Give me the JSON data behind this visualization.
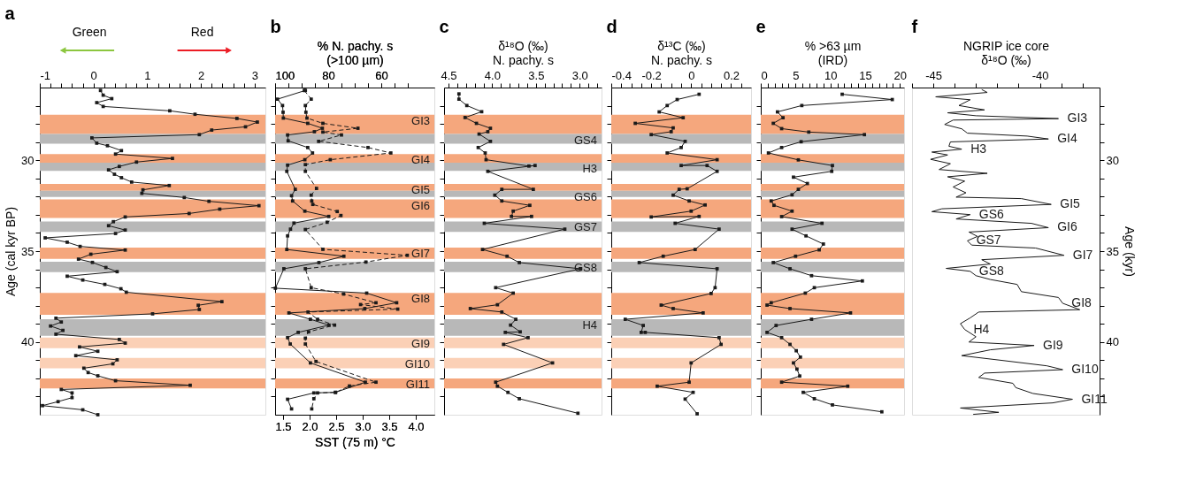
{
  "chart_data": [
    {
      "type": "line",
      "title": "a",
      "ylabel": "Age (cal kyr BP)",
      "orientation": "horizontal",
      "marker": "square",
      "line_style": "solid",
      "xlim": [
        -1,
        3.2
      ],
      "xticks": [
        -1,
        {
          "value": -0.8,
          "label": null
        },
        {
          "value": -0.6,
          "label": null
        },
        {
          "value": -0.4,
          "label": null
        },
        {
          "value": -0.2,
          "label": null
        },
        0,
        {
          "value": 0.2,
          "label": null
        },
        {
          "value": 0.4,
          "label": null
        },
        {
          "value": 0.6,
          "label": null
        },
        {
          "value": 0.8,
          "label": null
        },
        1,
        {
          "value": 1.2,
          "label": null
        },
        {
          "value": 1.4,
          "label": null
        },
        {
          "value": 1.6,
          "label": null
        },
        {
          "value": 1.8,
          "label": null
        },
        2,
        {
          "value": 2.2,
          "label": null
        },
        {
          "value": 2.4,
          "label": null
        },
        {
          "value": 2.6,
          "label": null
        },
        {
          "value": 2.8,
          "label": null
        },
        3
      ],
      "ylim": [
        44,
        26
      ],
      "yticks": [
        {
          "value": 27,
          "label": null
        },
        {
          "value": 28,
          "label": null
        },
        {
          "value": 29,
          "label": null
        },
        30,
        {
          "value": 31,
          "label": null
        },
        {
          "value": 32,
          "label": null
        },
        {
          "value": 33,
          "label": null
        },
        {
          "value": 34,
          "label": null
        },
        35,
        {
          "value": 36,
          "label": null
        },
        {
          "value": 37,
          "label": null
        },
        {
          "value": 38,
          "label": null
        },
        {
          "value": 39,
          "label": null
        },
        40,
        {
          "value": 41,
          "label": null
        },
        {
          "value": 42,
          "label": null
        },
        {
          "value": 43,
          "label": null
        }
      ],
      "x": [
        26.16,
        26.42,
        26.61,
        26.83,
        27.04,
        27.28,
        27.47,
        27.7,
        27.9,
        28.16,
        28.34,
        28.59,
        28.77,
        29.06,
        29.2,
        29.47,
        29.66,
        29.9,
        30.1,
        30.34,
        30.53,
        30.77,
        30.96,
        31.2,
        31.39,
        31.63,
        31.82,
        32.05,
        32.26,
        32.5,
        32.69,
        32.93,
        33.12,
        33.38,
        33.6,
        33.84,
        34.03,
        34.27,
        34.51,
        34.74,
        34.94,
        35.17,
        35.44,
        35.62,
        35.9,
        36.13,
        36.38,
        36.59,
        36.83,
        37.07,
        37.26,
        37.78,
        37.98,
        38.21,
        38.45,
        38.69,
        38.9,
        39.12,
        39.36,
        39.57,
        39.86,
        40.06,
        40.27,
        40.51,
        40.75,
        40.98,
        41.2,
        41.44,
        41.68,
        41.86,
        42.13,
        42.38,
        42.61,
        42.8,
        43.06,
        43.28,
        43.5,
        43.73,
        44.0
      ],
      "series": [
        {
          "color": "#1a1a1a",
          "values": [
            0.13,
            0.18,
            0.34,
            0.06,
            0.18,
            1.42,
            1.89,
            2.67,
            3.05,
            2.83,
            2.2,
            1.97,
            -0.03,
            0.06,
            0.26,
            0.52,
            0.41,
            1.47,
            0.8,
            0.48,
            0.28,
            0.39,
            0.52,
            0.71,
            1.41,
            0.92,
            0.9,
            1.69,
            2.15,
            3.08,
            2.35,
            1.78,
            0.59,
            0.37,
            0.28,
            0.59,
            0.41,
            -0.9,
            -0.49,
            -0.25,
            0.59,
            -0.05,
            -0.28,
            -0.02,
            0.23,
            0.44,
            -0.49,
            -0.2,
            0.21,
            0.51,
            0.61,
            2.39,
            1.95,
            1.97,
            1.1,
            -0.7,
            -0.6,
            -0.8,
            -0.57,
            -0.7,
            0.48,
            0.59,
            -0.26,
            0.08,
            -0.33,
            0.44,
            0.36,
            -0.18,
            -0.1,
            0.08,
            0.41,
            1.8,
            -0.6,
            -0.4,
            -0.4,
            -0.66,
            -0.95,
            -0.2,
            0.08
          ]
        }
      ],
      "bands": [
        {
          "axis": "y",
          "from": 27.5,
          "to": 28.56,
          "color": "#f5a77d"
        },
        {
          "axis": "y",
          "from": 28.56,
          "to": 29.09,
          "color": "#b8b8b8"
        },
        {
          "axis": "y",
          "from": 29.66,
          "to": 30.14,
          "color": "#f5a77d"
        },
        {
          "axis": "y",
          "from": 30.14,
          "to": 30.58,
          "color": "#b8b8b8"
        },
        {
          "axis": "y",
          "from": 31.3,
          "to": 31.68,
          "color": "#f5a77d"
        },
        {
          "axis": "y",
          "from": 31.68,
          "to": 32.02,
          "color": "#b8b8b8"
        },
        {
          "axis": "y",
          "from": 32.16,
          "to": 33.17,
          "color": "#f5a77d"
        },
        {
          "axis": "y",
          "from": 33.37,
          "to": 33.94,
          "color": "#b8b8b8"
        },
        {
          "axis": "y",
          "from": 34.8,
          "to": 35.43,
          "color": "#f5a77d"
        },
        {
          "axis": "y",
          "from": 35.58,
          "to": 36.15,
          "color": "#b8b8b8"
        },
        {
          "axis": "y",
          "from": 37.3,
          "to": 38.5,
          "color": "#f5a77d"
        },
        {
          "axis": "y",
          "from": 38.75,
          "to": 39.66,
          "color": "#b8b8b8"
        },
        {
          "axis": "y",
          "from": 39.76,
          "to": 40.34,
          "color": "#fbd0b6"
        },
        {
          "axis": "y",
          "from": 40.87,
          "to": 41.44,
          "color": "#fbd0b6"
        },
        {
          "axis": "y",
          "from": 42.0,
          "to": 42.55,
          "color": "#f5a77d"
        }
      ],
      "annotations": [
        "Green",
        "Red"
      ]
    },
    {
      "type": "line",
      "title": "b",
      "xlabel": "SST (75 m) °C",
      "x2label": "% N. pachy. s\n(>100 µm)",
      "orientation": "horizontal",
      "marker": "square",
      "tick_labels": "x",
      "xlim": [
        1.35,
        4.35
      ],
      "xticks": [
        1.5,
        {
          "value": 2,
          "label": "2.0"
        },
        2.5,
        {
          "value": 3,
          "label": "3.0"
        },
        3.5,
        {
          "value": 4,
          "label": "4.0"
        }
      ],
      "x2lim": [
        100,
        40
      ],
      "x2ticks": [
        100,
        {
          "value": 95,
          "label": null
        },
        {
          "value": 90,
          "label": null
        },
        {
          "value": 85,
          "label": null
        },
        80,
        {
          "value": 75,
          "label": null
        },
        {
          "value": 70,
          "label": null
        },
        {
          "value": 65,
          "label": null
        },
        60,
        {
          "value": 55,
          "label": null
        },
        {
          "value": 50,
          "label": null
        }
      ],
      "ylim": [
        44,
        26
      ],
      "yticks": [
        {
          "value": 27,
          "label": null
        },
        {
          "value": 28,
          "label": null
        },
        {
          "value": 29,
          "label": null
        },
        30,
        {
          "value": 31,
          "label": null
        },
        {
          "value": 32,
          "label": null
        },
        {
          "value": 33,
          "label": null
        },
        {
          "value": 34,
          "label": null
        },
        35,
        {
          "value": 36,
          "label": null
        },
        {
          "value": 37,
          "label": null
        },
        {
          "value": 38,
          "label": null
        },
        {
          "value": 39,
          "label": null
        },
        40,
        {
          "value": 41,
          "label": null
        },
        {
          "value": 42,
          "label": null
        },
        {
          "value": 43,
          "label": null
        }
      ],
      "series": [
        {
          "axis": "x2",
          "color": "#1a1a1a",
          "line_style": "solid",
          "x": [
            26.16,
            26.64,
            26.99,
            27.36,
            27.68,
            27.97,
            28.24,
            28.43,
            28.61,
            28.93,
            29.3,
            29.6,
            29.97,
            30.27,
            30.61,
            31.6,
            31.95,
            32.24,
            32.8,
            33.09,
            33.46,
            33.79,
            34.16,
            34.91,
            35.28,
            35.63,
            35.97,
            37.04,
            37.31,
            37.84,
            38.16,
            38.4,
            38.75,
            39.07,
            39.47,
            39.76,
            40.11,
            41.15,
            42.21,
            42.77,
            42.8,
            43.15,
            43.68
          ],
          "values": [
            88.6,
            99.1,
            97.2,
            97.0,
            96.9,
            87.7,
            82.2,
            85.2,
            95.3,
            95.1,
            87.7,
            85.9,
            88.8,
            95.3,
            95.6,
            92.4,
            93.8,
            93.4,
            88.8,
            79.8,
            92.9,
            94.2,
            95.3,
            95.6,
            74.1,
            83.5,
            96.7,
            99.9,
            65.5,
            54.2,
            66.2,
            94.8,
            86.7,
            79.7,
            91.3,
            95.3,
            94.3,
            86.7,
            66.0,
            77.3,
            85.4,
            95.3,
            93.8
          ]
        },
        {
          "color": "#1a1a1a",
          "line_style": "dashed",
          "x": [
            26.16,
            26.64,
            26.99,
            27.36,
            27.68,
            27.97,
            28.24,
            28.45,
            28.61,
            28.96,
            29.3,
            29.6,
            29.97,
            30.24,
            30.61,
            31.55,
            31.92,
            32.24,
            32.43,
            32.82,
            33.04,
            33.41,
            33.81,
            34.9,
            35.23,
            35.6,
            35.97,
            37.01,
            37.36,
            37.84,
            37.94,
            38.19,
            38.35,
            38.75,
            39.07,
            39.44,
            39.79,
            40.11,
            41.07,
            42.21,
            42.42,
            42.77,
            42.8,
            43.12,
            43.68
          ],
          "values": [
            1.9,
            2.03,
            1.92,
            1.93,
            1.95,
            2.25,
            2.91,
            2.25,
            2.6,
            2.17,
            3.1,
            3.53,
            2.39,
            1.92,
            1.92,
            2.13,
            2.03,
            2.04,
            2.06,
            2.52,
            2.59,
            2.33,
            1.92,
            2.25,
            3.84,
            3.06,
            1.92,
            2.03,
            2.64,
            3.25,
            2.96,
            3.66,
            1.97,
            2.15,
            2.47,
            1.98,
            1.92,
            1.92,
            2.12,
            3.25,
            2.75,
            2.49,
            2.15,
            2.08,
            2.04
          ]
        }
      ],
      "bands": [
        {
          "axis": "y",
          "from": 27.5,
          "to": 28.56,
          "color": "#f5a77d",
          "label": "GI3"
        },
        {
          "axis": "y",
          "from": 28.56,
          "to": 29.09,
          "color": "#b8b8b8"
        },
        {
          "axis": "y",
          "from": 29.66,
          "to": 30.14,
          "color": "#f5a77d",
          "label": "GI4"
        },
        {
          "axis": "y",
          "from": 30.14,
          "to": 30.58,
          "color": "#b8b8b8"
        },
        {
          "axis": "y",
          "from": 31.3,
          "to": 31.68,
          "color": "#f5a77d",
          "label": "GI5"
        },
        {
          "axis": "y",
          "from": 31.68,
          "to": 32.02,
          "color": "#b8b8b8"
        },
        {
          "axis": "y",
          "from": 32.16,
          "to": 33.17,
          "color": "#f5a77d",
          "label": "GI6"
        },
        {
          "axis": "y",
          "from": 33.37,
          "to": 33.94,
          "color": "#b8b8b8"
        },
        {
          "axis": "y",
          "from": 34.8,
          "to": 35.43,
          "color": "#f5a77d",
          "label": "GI7"
        },
        {
          "axis": "y",
          "from": 35.58,
          "to": 36.15,
          "color": "#b8b8b8"
        },
        {
          "axis": "y",
          "from": 37.3,
          "to": 38.5,
          "color": "#f5a77d",
          "label": "GI8"
        },
        {
          "axis": "y",
          "from": 38.75,
          "to": 39.66,
          "color": "#b8b8b8"
        },
        {
          "axis": "y",
          "from": 39.76,
          "to": 40.34,
          "color": "#fbd0b6",
          "label": "GI9"
        },
        {
          "axis": "y",
          "from": 40.87,
          "to": 41.44,
          "color": "#fbd0b6",
          "label": "GI10"
        },
        {
          "axis": "y",
          "from": 42.0,
          "to": 42.55,
          "color": "#f5a77d",
          "label": "GI11"
        }
      ]
    },
    {
      "type": "line",
      "title": "c",
      "xlabel": "δ¹⁸O (‰)\nN. pachy. s",
      "orientation": "horizontal",
      "marker": "square",
      "tick_labels": "x",
      "line_style": "solid",
      "xlim": [
        4.55,
        2.75
      ],
      "xticks": [
        4.5,
        {
          "value": 4.4,
          "label": null
        },
        {
          "value": 4.3,
          "label": null
        },
        {
          "value": 4.2,
          "label": null
        },
        {
          "value": 4.1,
          "label": null
        },
        {
          "value": 4,
          "label": "4.0"
        },
        {
          "value": 3.9,
          "label": null
        },
        {
          "value": 3.8,
          "label": null
        },
        {
          "value": 3.7,
          "label": null
        },
        {
          "value": 3.6,
          "label": null
        },
        3.5,
        {
          "value": 3.4,
          "label": null
        },
        {
          "value": 3.3,
          "label": null
        },
        {
          "value": 3.2,
          "label": null
        },
        {
          "value": 3.1,
          "label": null
        },
        {
          "value": 3,
          "label": "3.0"
        },
        {
          "value": 2.9,
          "label": null
        },
        {
          "value": 2.8,
          "label": null
        }
      ],
      "ylim": [
        44,
        26
      ],
      "yticks": [
        {
          "value": 27,
          "label": null
        },
        {
          "value": 28,
          "label": null
        },
        {
          "value": 29,
          "label": null
        },
        30,
        {
          "value": 31,
          "label": null
        },
        {
          "value": 32,
          "label": null
        },
        {
          "value": 33,
          "label": null
        },
        {
          "value": 34,
          "label": null
        },
        35,
        {
          "value": 36,
          "label": null
        },
        {
          "value": 37,
          "label": null
        },
        {
          "value": 38,
          "label": null
        },
        {
          "value": 39,
          "label": null
        },
        40,
        {
          "value": 41,
          "label": null
        },
        {
          "value": 42,
          "label": null
        },
        {
          "value": 43,
          "label": null
        }
      ],
      "x": [
        26.35,
        26.64,
        26.99,
        27.33,
        27.65,
        27.97,
        28.24,
        28.43,
        28.56,
        28.96,
        29.3,
        29.6,
        29.97,
        30.32,
        30.29,
        30.61,
        31.6,
        31.6,
        31.92,
        32.24,
        32.48,
        32.8,
        33.09,
        33.09,
        33.47,
        33.79,
        34.91,
        35.28,
        35.63,
        35.97,
        37.01,
        37.31,
        37.95,
        38.16,
        38.35,
        38.75,
        39.07,
        39.44,
        39.47,
        39.76,
        40.13,
        41.15,
        42.21,
        42.43,
        42.77,
        43.12,
        43.92
      ],
      "series": [
        {
          "color": "#1a1a1a",
          "values": [
            4.38,
            4.38,
            4.29,
            4.12,
            4.31,
            4.18,
            4.02,
            4.05,
            4.15,
            4.02,
            4.16,
            4.08,
            4.07,
            3.58,
            3.51,
            4.05,
            3.53,
            3.89,
            3.97,
            3.89,
            3.57,
            3.76,
            3.78,
            3.55,
            4.09,
            3.17,
            4.11,
            3.83,
            3.69,
            2.99,
            3.96,
            3.76,
            3.94,
            4.25,
            3.89,
            3.73,
            3.79,
            3.68,
            3.85,
            3.59,
            3.87,
            3.31,
            3.96,
            3.94,
            3.82,
            3.69,
            3.02
          ]
        }
      ],
      "bands": [
        {
          "axis": "y",
          "from": 27.5,
          "to": 28.56,
          "color": "#f5a77d"
        },
        {
          "axis": "y",
          "from": 28.56,
          "to": 29.09,
          "color": "#b8b8b8",
          "label": "GS4"
        },
        {
          "axis": "y",
          "from": 29.66,
          "to": 30.14,
          "color": "#f5a77d"
        },
        {
          "axis": "y",
          "from": 30.14,
          "to": 30.58,
          "color": "#b8b8b8",
          "label": "H3"
        },
        {
          "axis": "y",
          "from": 31.3,
          "to": 31.68,
          "color": "#f5a77d"
        },
        {
          "axis": "y",
          "from": 31.68,
          "to": 32.02,
          "color": "#b8b8b8",
          "label": "GS6"
        },
        {
          "axis": "y",
          "from": 32.16,
          "to": 33.17,
          "color": "#f5a77d"
        },
        {
          "axis": "y",
          "from": 33.37,
          "to": 33.94,
          "color": "#b8b8b8",
          "label": "GS7"
        },
        {
          "axis": "y",
          "from": 34.8,
          "to": 35.43,
          "color": "#f5a77d"
        },
        {
          "axis": "y",
          "from": 35.58,
          "to": 36.15,
          "color": "#b8b8b8",
          "label": "GS8"
        },
        {
          "axis": "y",
          "from": 37.3,
          "to": 38.5,
          "color": "#f5a77d"
        },
        {
          "axis": "y",
          "from": 38.75,
          "to": 39.66,
          "color": "#b8b8b8",
          "label": "H4"
        },
        {
          "axis": "y",
          "from": 39.76,
          "to": 40.34,
          "color": "#fbd0b6"
        },
        {
          "axis": "y",
          "from": 40.87,
          "to": 41.44,
          "color": "#fbd0b6"
        },
        {
          "axis": "y",
          "from": 42.0,
          "to": 42.55,
          "color": "#f5a77d"
        }
      ]
    },
    {
      "type": "line",
      "title": "d",
      "xlabel": "δ¹³C (‰)\nN. pachy. s",
      "orientation": "horizontal",
      "marker": "square",
      "tick_labels": "x",
      "line_style": "solid",
      "xlim": [
        -0.4,
        0.3
      ],
      "xticks": [
        -0.4,
        {
          "value": -0.35,
          "label": null
        },
        {
          "value": -0.3,
          "label": null
        },
        {
          "value": -0.25,
          "label": null
        },
        -0.2,
        {
          "value": -0.15,
          "label": null
        },
        {
          "value": -0.1,
          "label": null
        },
        {
          "value": -0.05,
          "label": null
        },
        0,
        {
          "value": 0.05,
          "label": null
        },
        {
          "value": 0.1,
          "label": null
        },
        {
          "value": 0.15,
          "label": null
        },
        0.2,
        {
          "value": 0.25,
          "label": null
        }
      ],
      "ylim": [
        44,
        26
      ],
      "yticks": [
        {
          "value": 27,
          "label": null
        },
        {
          "value": 28,
          "label": null
        },
        {
          "value": 29,
          "label": null
        },
        30,
        {
          "value": 31,
          "label": null
        },
        {
          "value": 32,
          "label": null
        },
        {
          "value": 33,
          "label": null
        },
        {
          "value": 34,
          "label": null
        },
        35,
        {
          "value": 36,
          "label": null
        },
        {
          "value": 37,
          "label": null
        },
        {
          "value": 38,
          "label": null
        },
        {
          "value": 39,
          "label": null
        },
        40,
        {
          "value": 41,
          "label": null
        },
        {
          "value": 42,
          "label": null
        },
        {
          "value": 43,
          "label": null
        }
      ],
      "x": [
        26.37,
        26.66,
        26.99,
        27.34,
        27.66,
        27.97,
        28.22,
        28.43,
        28.59,
        28.96,
        29.3,
        29.6,
        29.97,
        30.29,
        30.29,
        30.61,
        31.57,
        31.6,
        31.92,
        32.24,
        32.46,
        32.8,
        33.12,
        33.09,
        33.47,
        33.79,
        34.91,
        35.28,
        35.63,
        35.97,
        37.01,
        37.33,
        37.97,
        38.16,
        38.4,
        38.75,
        39.09,
        39.47,
        39.47,
        39.76,
        40.13,
        41.15,
        42.21,
        42.43,
        42.77,
        43.14,
        43.95
      ],
      "series": [
        {
          "color": "#1a1a1a",
          "values": [
            0.04,
            -0.07,
            -0.12,
            -0.16,
            -0.04,
            -0.28,
            -0.09,
            -0.1,
            -0.2,
            -0.03,
            -0.05,
            -0.12,
            0.13,
            -0.05,
            0.08,
            0.13,
            -0.02,
            -0.06,
            -0.09,
            -0.01,
            0.07,
            0.0,
            -0.2,
            0.04,
            -0.08,
            0.14,
            0.02,
            -0.14,
            -0.26,
            0.13,
            0.12,
            0.1,
            -0.15,
            -0.09,
            0.06,
            -0.33,
            -0.24,
            -0.25,
            -0.23,
            0.14,
            0.15,
            0.0,
            -0.01,
            -0.17,
            0.01,
            -0.03,
            0.03
          ]
        }
      ],
      "bands": [
        {
          "axis": "y",
          "from": 27.5,
          "to": 28.56,
          "color": "#f5a77d"
        },
        {
          "axis": "y",
          "from": 28.56,
          "to": 29.09,
          "color": "#b8b8b8"
        },
        {
          "axis": "y",
          "from": 29.66,
          "to": 30.14,
          "color": "#f5a77d"
        },
        {
          "axis": "y",
          "from": 30.14,
          "to": 30.58,
          "color": "#b8b8b8"
        },
        {
          "axis": "y",
          "from": 31.3,
          "to": 31.68,
          "color": "#f5a77d"
        },
        {
          "axis": "y",
          "from": 31.68,
          "to": 32.02,
          "color": "#b8b8b8"
        },
        {
          "axis": "y",
          "from": 32.16,
          "to": 33.17,
          "color": "#f5a77d"
        },
        {
          "axis": "y",
          "from": 33.37,
          "to": 33.94,
          "color": "#b8b8b8"
        },
        {
          "axis": "y",
          "from": 34.8,
          "to": 35.43,
          "color": "#f5a77d"
        },
        {
          "axis": "y",
          "from": 35.58,
          "to": 36.15,
          "color": "#b8b8b8"
        },
        {
          "axis": "y",
          "from": 37.3,
          "to": 38.5,
          "color": "#f5a77d"
        },
        {
          "axis": "y",
          "from": 38.75,
          "to": 39.66,
          "color": "#b8b8b8"
        },
        {
          "axis": "y",
          "from": 39.76,
          "to": 40.34,
          "color": "#fbd0b6"
        },
        {
          "axis": "y",
          "from": 40.87,
          "to": 41.44,
          "color": "#fbd0b6"
        },
        {
          "axis": "y",
          "from": 42.0,
          "to": 42.55,
          "color": "#f5a77d"
        }
      ]
    },
    {
      "type": "line",
      "title": "e",
      "xlabel": "% >63 µm\n(IRD)",
      "orientation": "horizontal",
      "marker": "square",
      "tick_labels": "x",
      "line_style": "solid",
      "xlim": [
        0,
        20.6
      ],
      "xticks": [
        0,
        {
          "value": 1,
          "label": null
        },
        {
          "value": 2,
          "label": null
        },
        {
          "value": 3,
          "label": null
        },
        {
          "value": 4,
          "label": null
        },
        5,
        {
          "value": 6,
          "label": null
        },
        {
          "value": 7,
          "label": null
        },
        {
          "value": 8,
          "label": null
        },
        {
          "value": 9,
          "label": null
        },
        10,
        {
          "value": 11,
          "label": null
        },
        {
          "value": 12,
          "label": null
        },
        {
          "value": 13,
          "label": null
        },
        {
          "value": 14,
          "label": null
        },
        15,
        {
          "value": 16,
          "label": null
        },
        {
          "value": 17,
          "label": null
        },
        {
          "value": 18,
          "label": null
        },
        {
          "value": 19,
          "label": null
        },
        20
      ],
      "ylim": [
        44,
        26
      ],
      "yticks": [
        {
          "value": 27,
          "label": null
        },
        {
          "value": 28,
          "label": null
        },
        {
          "value": 29,
          "label": null
        },
        30,
        {
          "value": 31,
          "label": null
        },
        {
          "value": 32,
          "label": null
        },
        {
          "value": 33,
          "label": null
        },
        {
          "value": 34,
          "label": null
        },
        35,
        {
          "value": 36,
          "label": null
        },
        {
          "value": 37,
          "label": null
        },
        {
          "value": 38,
          "label": null
        },
        {
          "value": 39,
          "label": null
        },
        40,
        {
          "value": 41,
          "label": null
        },
        {
          "value": 42,
          "label": null
        },
        {
          "value": 43,
          "label": null
        }
      ],
      "x": [
        26.37,
        26.66,
        26.99,
        27.34,
        27.66,
        27.97,
        28.26,
        28.45,
        28.59,
        28.98,
        29.3,
        29.6,
        29.98,
        30.29,
        30.61,
        30.93,
        31.28,
        31.6,
        31.9,
        32.24,
        32.48,
        32.8,
        33.1,
        33.47,
        33.79,
        34.16,
        34.61,
        34.93,
        35.28,
        35.63,
        35.97,
        36.35,
        36.64,
        37.01,
        37.31,
        37.84,
        37.97,
        38.16,
        38.4,
        38.75,
        39.09,
        39.47,
        39.76,
        40.13,
        40.48,
        40.83,
        41.15,
        41.49,
        41.87,
        42.21,
        42.43,
        42.77,
        43.12,
        43.46,
        43.84
      ],
      "series": [
        {
          "color": "#1a1a1a",
          "values": [
            11.7,
            18.9,
            5.9,
            2.4,
            3.2,
            1.8,
            3.0,
            6.9,
            14.9,
            5.8,
            3.0,
            1.1,
            5.4,
            10.3,
            10.2,
            4.7,
            6.7,
            5.4,
            4.5,
            1.5,
            1.9,
            4.5,
            3.0,
            8.8,
            4.5,
            6.5,
            9.0,
            8.4,
            5.0,
            1.8,
            4.2,
            7.3,
            14.6,
            7.7,
            6.4,
            1.5,
            0.9,
            4.2,
            12.9,
            7.3,
            2.2,
            0.9,
            3.0,
            4.2,
            5.1,
            5.7,
            4.7,
            5.2,
            5.6,
            3.0,
            12.5,
            6.1,
            7.7,
            10.3,
            17.4
          ]
        }
      ],
      "bands": [
        {
          "axis": "y",
          "from": 27.5,
          "to": 28.56,
          "color": "#f5a77d"
        },
        {
          "axis": "y",
          "from": 28.56,
          "to": 29.09,
          "color": "#b8b8b8"
        },
        {
          "axis": "y",
          "from": 29.66,
          "to": 30.14,
          "color": "#f5a77d"
        },
        {
          "axis": "y",
          "from": 30.14,
          "to": 30.58,
          "color": "#b8b8b8"
        },
        {
          "axis": "y",
          "from": 31.3,
          "to": 31.68,
          "color": "#f5a77d"
        },
        {
          "axis": "y",
          "from": 31.68,
          "to": 32.02,
          "color": "#b8b8b8"
        },
        {
          "axis": "y",
          "from": 32.16,
          "to": 33.17,
          "color": "#f5a77d"
        },
        {
          "axis": "y",
          "from": 33.37,
          "to": 33.94,
          "color": "#b8b8b8"
        },
        {
          "axis": "y",
          "from": 34.8,
          "to": 35.43,
          "color": "#f5a77d"
        },
        {
          "axis": "y",
          "from": 35.58,
          "to": 36.15,
          "color": "#b8b8b8"
        },
        {
          "axis": "y",
          "from": 37.3,
          "to": 38.5,
          "color": "#f5a77d"
        },
        {
          "axis": "y",
          "from": 38.75,
          "to": 39.66,
          "color": "#b8b8b8"
        },
        {
          "axis": "y",
          "from": 39.76,
          "to": 40.34,
          "color": "#fbd0b6"
        },
        {
          "axis": "y",
          "from": 40.87,
          "to": 41.44,
          "color": "#fbd0b6"
        },
        {
          "axis": "y",
          "from": 42.0,
          "to": 42.55,
          "color": "#f5a77d"
        }
      ]
    },
    {
      "type": "line",
      "title": "f",
      "xlabel": "NGRIP ice core\nδ¹⁸O (‰)",
      "ylabel": "Age (kyr)",
      "orientation": "horizontal",
      "line_style": "solid",
      "xlim": [
        -46,
        -37.2
      ],
      "xticks": [
        {
          "value": -46,
          "label": null
        },
        -45,
        {
          "value": -44,
          "label": null
        },
        {
          "value": -43,
          "label": null
        },
        {
          "value": -42,
          "label": null
        },
        {
          "value": -41,
          "label": null
        },
        -40,
        {
          "value": -39,
          "label": null
        },
        {
          "value": -38,
          "label": null
        }
      ],
      "ylim": [
        44,
        26
      ],
      "yticks": [
        {
          "value": 27,
          "label": null
        },
        {
          "value": 28,
          "label": null
        },
        {
          "value": 29,
          "label": null
        },
        30,
        {
          "value": 31,
          "label": null
        },
        {
          "value": 32,
          "label": null
        },
        {
          "value": 33,
          "label": null
        },
        {
          "value": 34,
          "label": null
        },
        35,
        {
          "value": 36,
          "label": null
        },
        {
          "value": 37,
          "label": null
        },
        {
          "value": 38,
          "label": null
        },
        {
          "value": 39,
          "label": null
        },
        40,
        {
          "value": 41,
          "label": null
        },
        {
          "value": 42,
          "label": null
        },
        {
          "value": 43,
          "label": null
        }
      ],
      "x": [
        26.11,
        26.27,
        26.51,
        26.67,
        26.99,
        27.23,
        27.39,
        27.55,
        27.71,
        27.79,
        28.03,
        28.27,
        28.51,
        28.67,
        28.83,
        28.99,
        29.23,
        29.39,
        29.55,
        29.71,
        29.95,
        30.19,
        30.51,
        30.72,
        30.91,
        31.15,
        31.47,
        31.79,
        32.03,
        32.11,
        32.43,
        32.67,
        32.83,
        32.99,
        33.23,
        33.47,
        33.71,
        33.95,
        34.19,
        34.43,
        34.67,
        34.83,
        35.23,
        35.47,
        35.71,
        35.95,
        36.11,
        36.35,
        36.56,
        36.83,
        37.23,
        37.55,
        37.87,
        38.22,
        38.35,
        38.67,
        38.99,
        39.31,
        39.71,
        40.0,
        40.19,
        40.43,
        40.75,
        40.99,
        41.31,
        41.52,
        41.71,
        41.95,
        42.27,
        42.51,
        42.83,
        43.15,
        43.35,
        43.63,
        43.87,
        43.98
      ],
      "series": [
        {
          "color": "#1a1a1a",
          "values": [
            -42.73,
            -42.47,
            -44.89,
            -43.27,
            -43.8,
            -42.6,
            -44.33,
            -43.0,
            -39.13,
            -44.07,
            -44.47,
            -43.67,
            -43.4,
            -40.6,
            -39.6,
            -44.2,
            -44.27,
            -43.67,
            -45.07,
            -44.33,
            -45.13,
            -44.2,
            -44.73,
            -42.47,
            -44.33,
            -43.53,
            -44.07,
            -43.47,
            -43.93,
            -40.87,
            -39.47,
            -44.6,
            -45.07,
            -43.27,
            -43.93,
            -40.4,
            -39.6,
            -43.33,
            -42.93,
            -43.4,
            -43.2,
            -40.2,
            -38.87,
            -42.73,
            -42.33,
            -44.4,
            -43.27,
            -43.0,
            -42.33,
            -41.07,
            -40.87,
            -39.13,
            -38.93,
            -38.13,
            -42.87,
            -43.27,
            -43.73,
            -43.53,
            -43.0,
            -43.33,
            -40.27,
            -42.33,
            -43.67,
            -41.93,
            -39.67,
            -38.93,
            -42.6,
            -42.87,
            -41.27,
            -41.13,
            -40.33,
            -38.47,
            -39.4,
            -43.73,
            -41.93,
            -43.13
          ]
        }
      ],
      "annotations": [
        {
          "text": "GI3",
          "x": -39.13,
          "y": 27.71
        },
        {
          "text": "GI4",
          "x": -39.6,
          "y": 28.83
        },
        {
          "text": "H3",
          "x": -43.67,
          "y": 29.39
        },
        {
          "text": "GI5",
          "x": -39.47,
          "y": 32.43
        },
        {
          "text": "GS6",
          "x": -43.27,
          "y": 32.99
        },
        {
          "text": "GI6",
          "x": -39.6,
          "y": 33.71
        },
        {
          "text": "GS7",
          "x": -43.4,
          "y": 34.43
        },
        {
          "text": "GI7",
          "x": -38.87,
          "y": 35.23
        },
        {
          "text": "GS8",
          "x": -43.27,
          "y": 36.11
        },
        {
          "text": "GI8",
          "x": -38.93,
          "y": 37.87
        },
        {
          "text": "H4",
          "x": -43.53,
          "y": 39.31
        },
        {
          "text": "GI9",
          "x": -40.27,
          "y": 40.19
        },
        {
          "text": "GI10",
          "x": -38.93,
          "y": 41.52
        },
        {
          "text": "GI11",
          "x": -38.47,
          "y": 43.15
        }
      ]
    }
  ]
}
